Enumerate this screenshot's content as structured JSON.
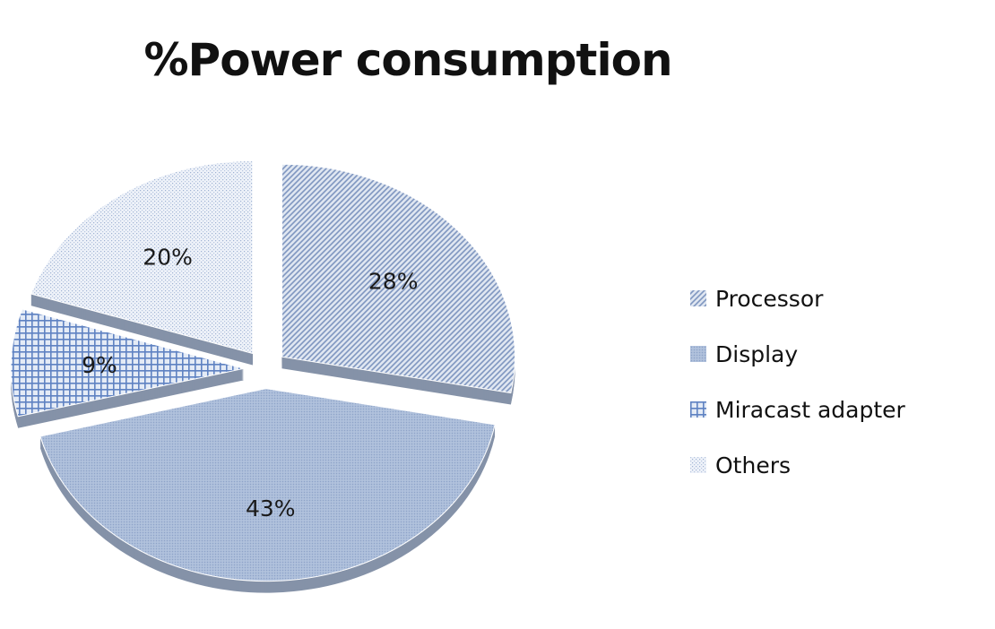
{
  "chart_data": {
    "type": "pie",
    "title": "%Power consumption",
    "categories": [
      "Processor",
      "Display",
      "Miracast adapter",
      "Others"
    ],
    "values": [
      28,
      43,
      9,
      20
    ],
    "data_labels": [
      "28%",
      "43%",
      "9%",
      "20%"
    ],
    "exploded": true,
    "style": "3d",
    "legend_position": "right",
    "colors": {
      "Processor": "#9db0cf",
      "Display": "#a6b9d8",
      "Miracast adapter": "#6f8fc8",
      "Others": "#b3c1da",
      "depth": "#8592a8",
      "label": "#1a1a1a"
    },
    "patterns": {
      "Processor": "diagonal-hatch",
      "Display": "fine-dots",
      "Miracast adapter": "grid-crosshatch",
      "Others": "sparse-dots"
    }
  }
}
